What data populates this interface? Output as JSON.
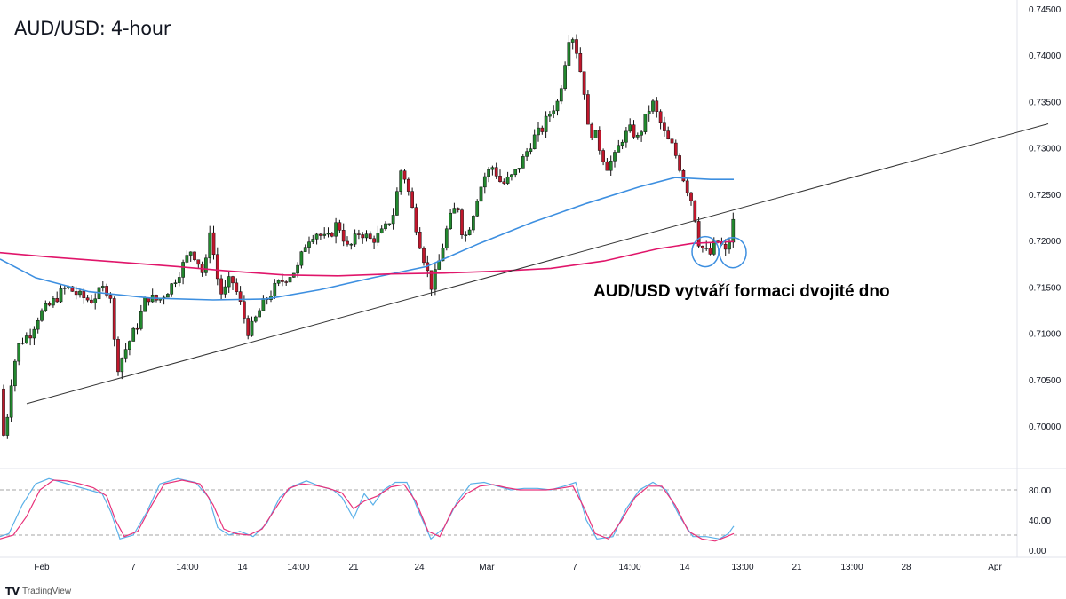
{
  "chart_title": "AUD/USD: 4-hour",
  "annotation": "AUD/USD vytváří formaci dvojité dno",
  "branding": "TradingView",
  "colors": {
    "up": "#22882e",
    "down": "#c0172c",
    "ema_fast": "#3d8fe0",
    "ema_slow": "#e0156a",
    "trendline": "#333333",
    "stoch_k": "#5ab0e8",
    "stoch_d": "#e8327a"
  },
  "chart_data": [
    {
      "type": "candlestick",
      "title": "AUD/USD: 4-hour",
      "y_ticks": [
        "0.74500",
        "0.74000",
        "0.73500",
        "0.73000",
        "0.72500",
        "0.72000",
        "0.71500",
        "0.71000",
        "0.70500",
        "0.70000"
      ],
      "ylim": [
        0.6965,
        0.746
      ],
      "x_ticks": [
        "Feb",
        "7",
        "14:00",
        "14",
        "14:00",
        "21",
        "24",
        "Mar",
        "7",
        "14:00",
        "14",
        "13:00",
        "21",
        "13:00",
        "28",
        "Apr"
      ],
      "price_path": [
        [
          0,
          0.704
        ],
        [
          4,
          0.699
        ],
        [
          8,
          0.701
        ],
        [
          14,
          0.706
        ],
        [
          22,
          0.709
        ],
        [
          34,
          0.71
        ],
        [
          44,
          0.712
        ],
        [
          56,
          0.713
        ],
        [
          65,
          0.714
        ],
        [
          75,
          0.715
        ],
        [
          90,
          0.714
        ],
        [
          102,
          0.7135
        ],
        [
          118,
          0.715
        ],
        [
          125,
          0.714
        ],
        [
          131,
          0.706
        ],
        [
          140,
          0.708
        ],
        [
          155,
          0.711
        ],
        [
          165,
          0.714
        ],
        [
          178,
          0.7135
        ],
        [
          192,
          0.715
        ],
        [
          204,
          0.717
        ],
        [
          215,
          0.719
        ],
        [
          222,
          0.718
        ],
        [
          230,
          0.716
        ],
        [
          237,
          0.722
        ],
        [
          242,
          0.717
        ],
        [
          250,
          0.714
        ],
        [
          260,
          0.716
        ],
        [
          268,
          0.714
        ],
        [
          280,
          0.71
        ],
        [
          295,
          0.713
        ],
        [
          310,
          0.715
        ],
        [
          322,
          0.716
        ],
        [
          335,
          0.717
        ],
        [
          345,
          0.72
        ],
        [
          355,
          0.721
        ],
        [
          368,
          0.72
        ],
        [
          380,
          0.722
        ],
        [
          392,
          0.719
        ],
        [
          405,
          0.721
        ],
        [
          418,
          0.72
        ],
        [
          432,
          0.721
        ],
        [
          443,
          0.723
        ],
        [
          452,
          0.728
        ],
        [
          458,
          0.726
        ],
        [
          465,
          0.723
        ],
        [
          472,
          0.72
        ],
        [
          480,
          0.717
        ],
        [
          486,
          0.715
        ],
        [
          495,
          0.718
        ],
        [
          505,
          0.722
        ],
        [
          515,
          0.724
        ],
        [
          522,
          0.72
        ],
        [
          530,
          0.722
        ],
        [
          538,
          0.725
        ],
        [
          546,
          0.727
        ],
        [
          555,
          0.728
        ],
        [
          565,
          0.726
        ],
        [
          578,
          0.727
        ],
        [
          590,
          0.729
        ],
        [
          600,
          0.731
        ],
        [
          610,
          0.732
        ],
        [
          620,
          0.734
        ],
        [
          628,
          0.735
        ],
        [
          634,
          0.738
        ],
        [
          640,
          0.742
        ],
        [
          646,
          0.742
        ],
        [
          652,
          0.739
        ],
        [
          658,
          0.736
        ],
        [
          663,
          0.731
        ],
        [
          668,
          0.732
        ],
        [
          675,
          0.73
        ],
        [
          683,
          0.728
        ],
        [
          692,
          0.729
        ],
        [
          700,
          0.731
        ],
        [
          710,
          0.732
        ],
        [
          718,
          0.731
        ],
        [
          726,
          0.733
        ],
        [
          734,
          0.735
        ],
        [
          742,
          0.733
        ],
        [
          750,
          0.731
        ],
        [
          758,
          0.73
        ],
        [
          765,
          0.728
        ],
        [
          772,
          0.726
        ],
        [
          780,
          0.724
        ],
        [
          786,
          0.72
        ],
        [
          792,
          0.719
        ],
        [
          800,
          0.7185
        ],
        [
          806,
          0.72
        ],
        [
          812,
          0.7195
        ],
        [
          818,
          0.7185
        ],
        [
          824,
          0.7215
        ],
        [
          828,
          0.723
        ]
      ],
      "series": [
        {
          "name": "",
          "kind": "ema_fast",
          "points": [
            [
              0,
              0.718
            ],
            [
              40,
              0.716
            ],
            [
              100,
              0.7145
            ],
            [
              170,
              0.7138
            ],
            [
              240,
              0.7136
            ],
            [
              300,
              0.7137
            ],
            [
              360,
              0.7147
            ],
            [
              420,
              0.716
            ],
            [
              480,
              0.7172
            ],
            [
              540,
              0.7197
            ],
            [
              600,
              0.722
            ],
            [
              660,
              0.724
            ],
            [
              720,
              0.7258
            ],
            [
              760,
              0.7268
            ],
            [
              800,
              0.7266
            ],
            [
              826,
              0.7266
            ]
          ]
        },
        {
          "name": "",
          "kind": "ema_slow",
          "points": [
            [
              0,
              0.7187
            ],
            [
              60,
              0.7182
            ],
            [
              130,
              0.7177
            ],
            [
              200,
              0.7172
            ],
            [
              260,
              0.7167
            ],
            [
              320,
              0.7163
            ],
            [
              380,
              0.7162
            ],
            [
              440,
              0.7164
            ],
            [
              500,
              0.7165
            ],
            [
              560,
              0.7167
            ],
            [
              620,
              0.717
            ],
            [
              680,
              0.7178
            ],
            [
              740,
              0.7191
            ],
            [
              780,
              0.7197
            ],
            [
              826,
              0.7199
            ]
          ]
        },
        {
          "name": "",
          "kind": "trendline",
          "points": [
            [
              30,
              0.7024
            ],
            [
              1180,
              0.7326
            ]
          ]
        }
      ],
      "double_bottom_circles": [
        [
          794,
          0.7188
        ],
        [
          825,
          0.7187
        ]
      ]
    },
    {
      "type": "line",
      "title": "",
      "y_ticks": [
        "80.00",
        "40.00",
        "0.00"
      ],
      "ylim": [
        -10,
        100
      ],
      "levels": [
        80,
        20
      ],
      "series": [
        {
          "name": "",
          "kind": "stoch_k",
          "points": [
            [
              0,
              18
            ],
            [
              10,
              22
            ],
            [
              25,
              60
            ],
            [
              40,
              88
            ],
            [
              55,
              95
            ],
            [
              70,
              90
            ],
            [
              85,
              85
            ],
            [
              100,
              80
            ],
            [
              115,
              75
            ],
            [
              125,
              50
            ],
            [
              135,
              15
            ],
            [
              150,
              20
            ],
            [
              165,
              50
            ],
            [
              180,
              88
            ],
            [
              200,
              95
            ],
            [
              220,
              90
            ],
            [
              235,
              70
            ],
            [
              245,
              30
            ],
            [
              258,
              20
            ],
            [
              270,
              25
            ],
            [
              285,
              18
            ],
            [
              300,
              35
            ],
            [
              315,
              70
            ],
            [
              330,
              85
            ],
            [
              345,
              92
            ],
            [
              360,
              85
            ],
            [
              375,
              80
            ],
            [
              385,
              70
            ],
            [
              398,
              42
            ],
            [
              410,
              75
            ],
            [
              420,
              60
            ],
            [
              432,
              80
            ],
            [
              445,
              90
            ],
            [
              458,
              90
            ],
            [
              470,
              55
            ],
            [
              485,
              15
            ],
            [
              500,
              30
            ],
            [
              515,
              65
            ],
            [
              530,
              88
            ],
            [
              545,
              90
            ],
            [
              560,
              85
            ],
            [
              575,
              80
            ],
            [
              590,
              82
            ],
            [
              605,
              82
            ],
            [
              620,
              80
            ],
            [
              635,
              85
            ],
            [
              648,
              90
            ],
            [
              660,
              40
            ],
            [
              672,
              15
            ],
            [
              690,
              18
            ],
            [
              705,
              55
            ],
            [
              720,
              80
            ],
            [
              735,
              90
            ],
            [
              750,
              80
            ],
            [
              765,
              45
            ],
            [
              780,
              18
            ],
            [
              795,
              18
            ],
            [
              810,
              15
            ],
            [
              820,
              22
            ],
            [
              826,
              32
            ]
          ]
        },
        {
          "name": "",
          "kind": "stoch_d",
          "points": [
            [
              0,
              15
            ],
            [
              15,
              20
            ],
            [
              30,
              45
            ],
            [
              45,
              80
            ],
            [
              60,
              93
            ],
            [
              75,
              92
            ],
            [
              90,
              88
            ],
            [
              105,
              83
            ],
            [
              120,
              72
            ],
            [
              130,
              40
            ],
            [
              140,
              18
            ],
            [
              155,
              25
            ],
            [
              170,
              58
            ],
            [
              185,
              88
            ],
            [
              205,
              93
            ],
            [
              225,
              88
            ],
            [
              240,
              60
            ],
            [
              252,
              28
            ],
            [
              265,
              22
            ],
            [
              280,
              20
            ],
            [
              295,
              28
            ],
            [
              310,
              55
            ],
            [
              325,
              82
            ],
            [
              340,
              88
            ],
            [
              355,
              86
            ],
            [
              370,
              82
            ],
            [
              385,
              76
            ],
            [
              398,
              55
            ],
            [
              410,
              65
            ],
            [
              425,
              72
            ],
            [
              440,
              84
            ],
            [
              455,
              87
            ],
            [
              468,
              65
            ],
            [
              482,
              25
            ],
            [
              495,
              18
            ],
            [
              510,
              55
            ],
            [
              525,
              75
            ],
            [
              540,
              85
            ],
            [
              555,
              87
            ],
            [
              570,
              83
            ],
            [
              585,
              80
            ],
            [
              600,
              80
            ],
            [
              615,
              80
            ],
            [
              630,
              82
            ],
            [
              645,
              85
            ],
            [
              658,
              55
            ],
            [
              670,
              22
            ],
            [
              685,
              15
            ],
            [
              700,
              40
            ],
            [
              715,
              70
            ],
            [
              730,
              85
            ],
            [
              745,
              85
            ],
            [
              760,
              60
            ],
            [
              775,
              25
            ],
            [
              790,
              15
            ],
            [
              805,
              12
            ],
            [
              818,
              18
            ],
            [
              826,
              22
            ]
          ]
        }
      ]
    }
  ]
}
